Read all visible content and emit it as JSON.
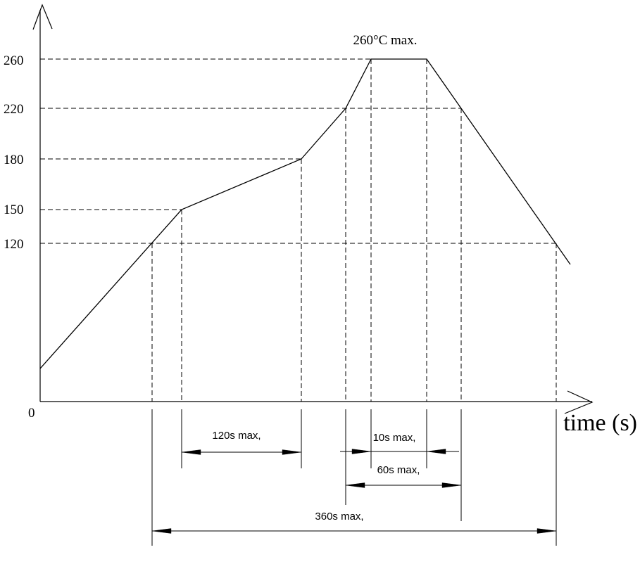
{
  "chart_data": {
    "type": "line",
    "xlabel": "time (s)",
    "y_ticks": [
      0,
      120,
      150,
      180,
      220,
      260
    ],
    "series": [
      {
        "values": [
          25,
          150,
          180,
          220,
          260,
          260,
          104
        ]
      }
    ],
    "annotations": [
      {
        "text": "260°C max."
      },
      {
        "text": "120s max,"
      },
      {
        "text": "10s max,"
      },
      {
        "text": "60s max,"
      },
      {
        "text": "360s max,"
      }
    ],
    "grid": false,
    "colors": {
      "line": "#000000",
      "background": "#ffffff"
    }
  }
}
